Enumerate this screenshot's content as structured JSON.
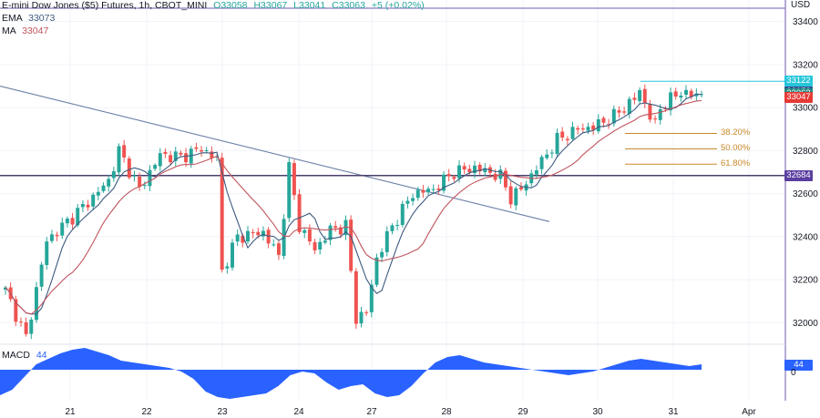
{
  "header": {
    "title": "E-mini Dow Jones ($5) Futures, 1h, CBOT_MINI",
    "ohlc": {
      "O": "33058",
      "H": "33067",
      "L": "33041",
      "C": "33063"
    },
    "change": "+5 (+0.02%)",
    "ema_label": "EMA",
    "ema_value": "33073",
    "ma_label": "MA",
    "ma_value": "33047"
  },
  "currency": "USD",
  "colors": {
    "up": "#26a69a",
    "down": "#ef5350",
    "ema": "#3d5a80",
    "ma": "#c0545e",
    "fib": "#c8882a",
    "support": "#4a3f6b",
    "macd": "#2962ff"
  },
  "price_axis": {
    "ticks": [
      33400,
      33200,
      33000,
      32800,
      32600,
      32400,
      32200,
      32000
    ],
    "min": 31900,
    "max": 33500
  },
  "price_labels": [
    {
      "value": "33122",
      "bg": "#26c6da"
    },
    {
      "value": "33073",
      "bg": "#2f4f8f"
    },
    {
      "value": "33063",
      "bg": "#1e8a80"
    },
    {
      "value": "33047",
      "bg": "#e53935"
    },
    {
      "value": "32684",
      "bg": "#5b3fa0"
    }
  ],
  "fib_levels": [
    {
      "label": "38.20%",
      "price": 32880
    },
    {
      "label": "50.00%",
      "price": 32808
    },
    {
      "label": "61.80%",
      "price": 32737
    }
  ],
  "support_price": 32684,
  "resistance_price": 33122,
  "trendline": {
    "start_price": 33100,
    "end_price": 32470
  },
  "x_labels": [
    "21",
    "22",
    "23",
    "24",
    "27",
    "28",
    "29",
    "30",
    "31",
    "Apr"
  ],
  "macd": {
    "label": "MACD",
    "value": "44",
    "badge": "44",
    "zero": "0"
  },
  "chart_data": {
    "type": "candlestick",
    "title": "E-mini Dow Jones ($5) Futures, 1h, CBOT_MINI",
    "xlabel": "",
    "ylabel": "",
    "ylim": [
      31900,
      33500
    ],
    "anchors": [
      [
        0,
        32150
      ],
      [
        4,
        31930
      ],
      [
        8,
        32380
      ],
      [
        12,
        32470
      ],
      [
        16,
        32560
      ],
      [
        20,
        32660
      ],
      [
        22,
        32800
      ],
      [
        26,
        32620
      ],
      [
        30,
        32780
      ],
      [
        34,
        32770
      ],
      [
        38,
        32810
      ],
      [
        41,
        32760
      ],
      [
        42,
        32240
      ],
      [
        45,
        32400
      ],
      [
        50,
        32420
      ],
      [
        53,
        32310
      ],
      [
        55,
        32720
      ],
      [
        57,
        32450
      ],
      [
        60,
        32340
      ],
      [
        63,
        32430
      ],
      [
        66,
        32450
      ],
      [
        68,
        32020
      ],
      [
        70,
        32050
      ],
      [
        72,
        32300
      ],
      [
        75,
        32450
      ],
      [
        79,
        32600
      ],
      [
        83,
        32620
      ],
      [
        87,
        32700
      ],
      [
        91,
        32720
      ],
      [
        95,
        32690
      ],
      [
        96,
        32680
      ],
      [
        98,
        32580
      ],
      [
        100,
        32620
      ],
      [
        103,
        32720
      ],
      [
        107,
        32850
      ],
      [
        111,
        32900
      ],
      [
        114,
        32910
      ],
      [
        118,
        32960
      ],
      [
        122,
        33040
      ],
      [
        123,
        33080
      ],
      [
        125,
        32960
      ],
      [
        126,
        32920
      ],
      [
        127,
        33000
      ],
      [
        131,
        33075
      ],
      [
        133,
        33055
      ],
      [
        135,
        33063
      ]
    ]
  }
}
